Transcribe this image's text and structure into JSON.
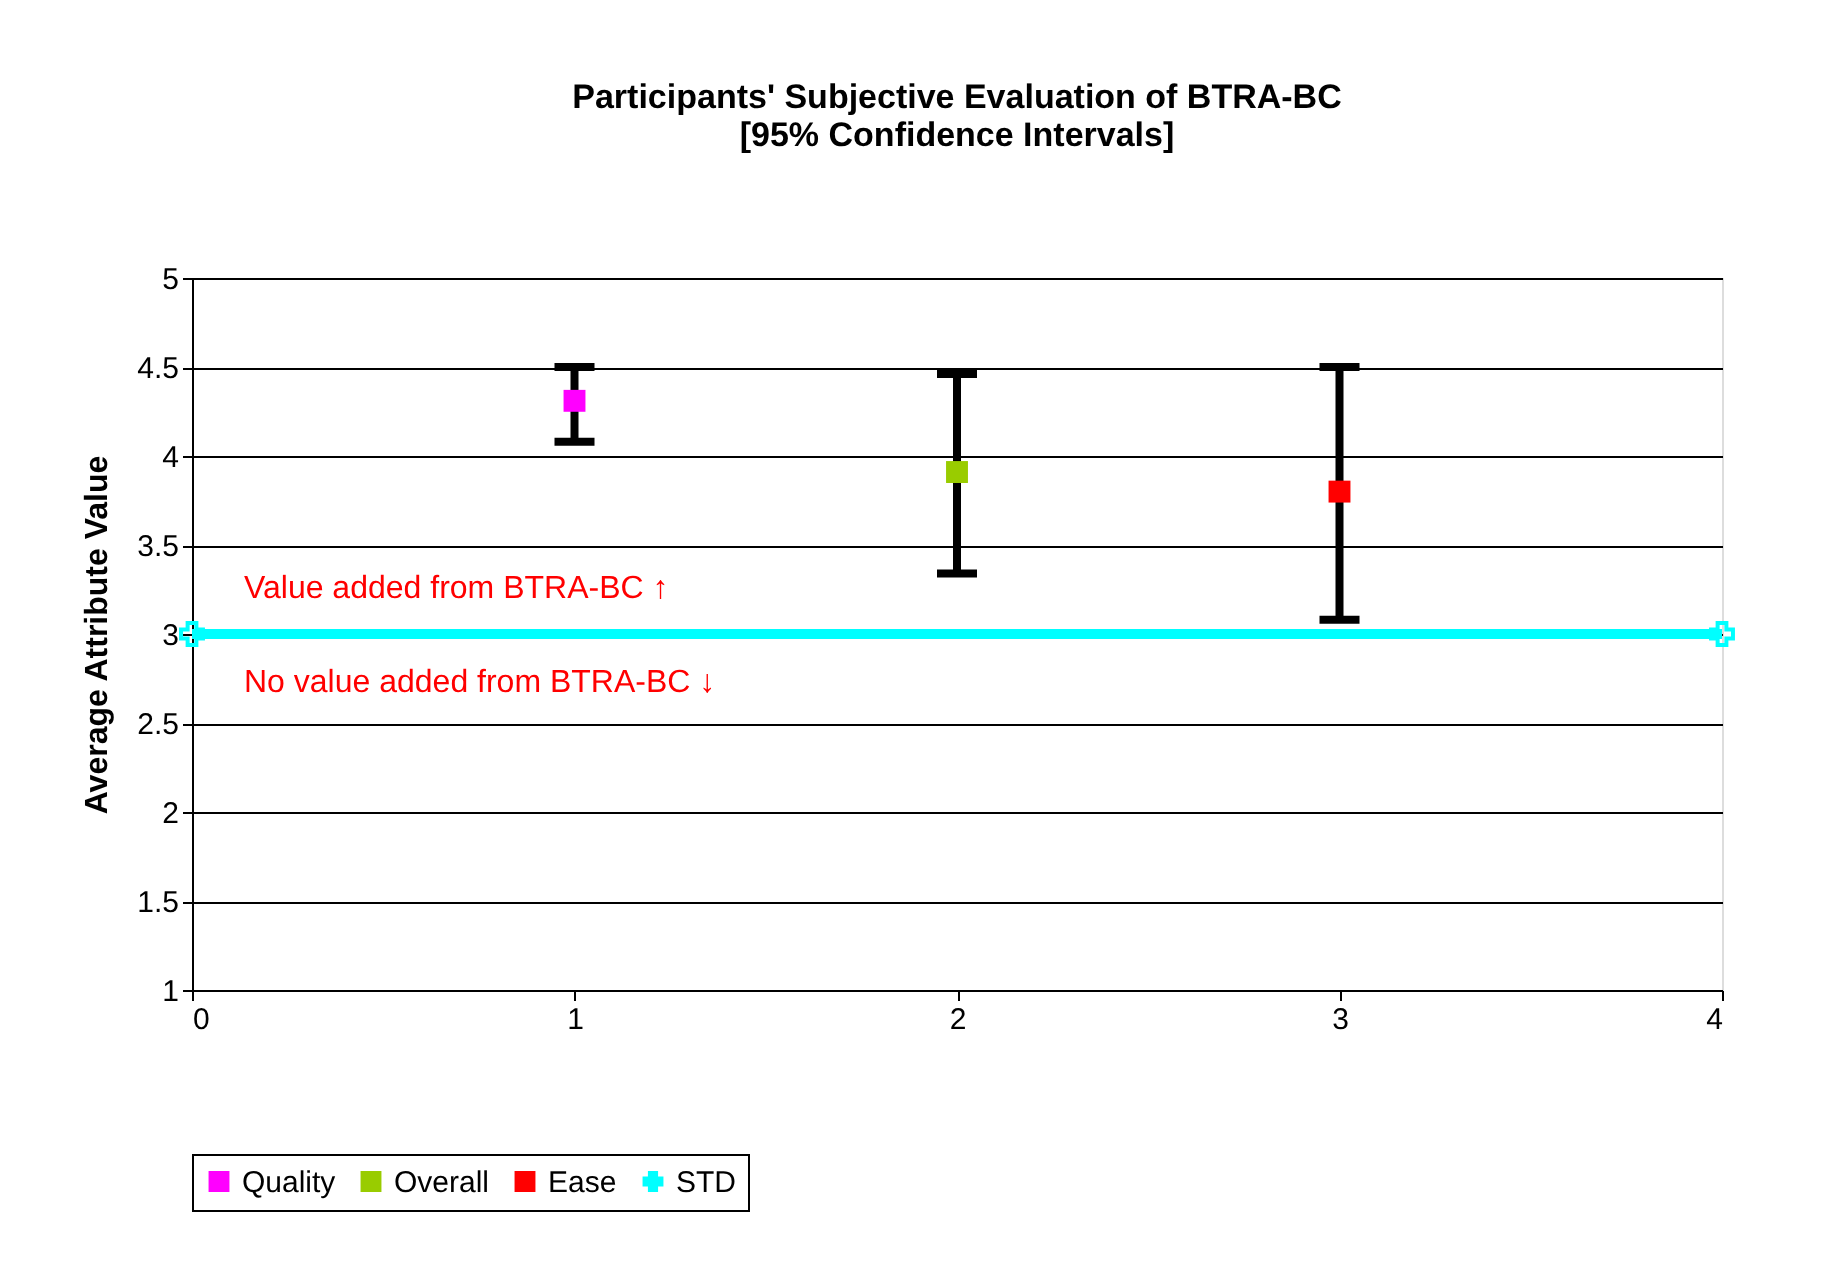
{
  "chart_data": {
    "type": "scatter",
    "title": [
      "Participants' Subjective Evaluation of BTRA-BC",
      "[95% Confidence Intervals]"
    ],
    "ylabel": "Average Attribute Value",
    "series": [
      {
        "name": "Quality",
        "color": "#ff00ff",
        "x": [
          1
        ],
        "values": [
          4.31
        ],
        "errors": [
          [
            4.08,
            4.5
          ]
        ]
      },
      {
        "name": "Overall",
        "color": "#99cc00",
        "x": [
          2
        ],
        "values": [
          3.91
        ],
        "errors": [
          [
            3.34,
            4.46
          ]
        ]
      },
      {
        "name": "Ease",
        "color": "#ff0000",
        "x": [
          3
        ],
        "values": [
          3.8
        ],
        "errors": [
          [
            3.08,
            4.5
          ]
        ]
      },
      {
        "name": "STD",
        "color": "#00ffff",
        "type": "line",
        "marker": "cross",
        "x": [
          0,
          4
        ],
        "values": [
          3,
          3
        ]
      }
    ],
    "annotations": [
      "Value added from BTRA-BC ↑",
      "No value added from BTRA-BC ↓"
    ],
    "xlim": [
      0,
      4
    ],
    "xticks": [
      0,
      1,
      2,
      3,
      4
    ],
    "ylim": [
      1,
      5
    ],
    "yticks": [
      1,
      1.5,
      2,
      2.5,
      3,
      3.5,
      4,
      4.5,
      5
    ],
    "marker": "square",
    "grid": "y",
    "legend": "bottom"
  }
}
